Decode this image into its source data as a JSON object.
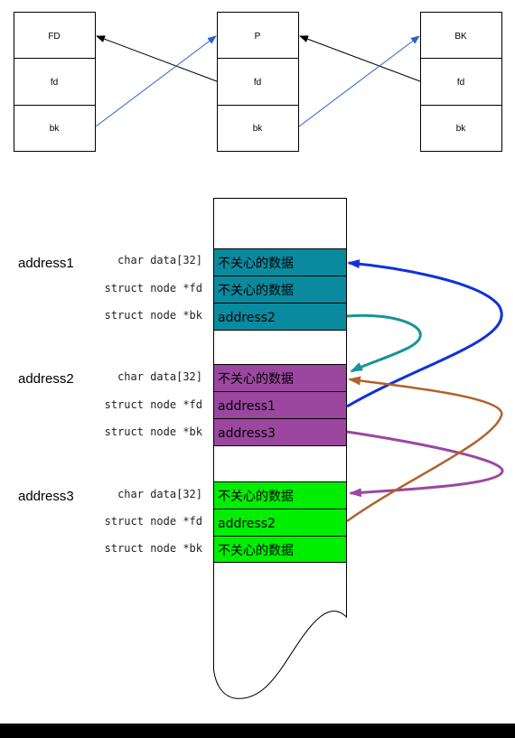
{
  "top": {
    "nodes": [
      {
        "name": "FD",
        "fields": [
          "FD",
          "fd",
          "bk"
        ]
      },
      {
        "name": "P",
        "fields": [
          "P",
          "fd",
          "bk"
        ]
      },
      {
        "name": "BK",
        "fields": [
          "BK",
          "fd",
          "bk"
        ]
      }
    ]
  },
  "bottom": {
    "addresses": [
      {
        "label": "address1",
        "fields": [
          {
            "decl": "char data[32]",
            "value": "不关心的数据"
          },
          {
            "decl": "struct node *fd",
            "value": "不关心的数据"
          },
          {
            "decl": "struct node *bk",
            "value": "address2"
          }
        ]
      },
      {
        "label": "address2",
        "fields": [
          {
            "decl": "char data[32]",
            "value": "不关心的数据"
          },
          {
            "decl": "struct node *fd",
            "value": "address1"
          },
          {
            "decl": "struct node *bk",
            "value": "address3"
          }
        ]
      },
      {
        "label": "address3",
        "fields": [
          {
            "decl": "char data[32]",
            "value": "不关心的数据"
          },
          {
            "decl": "struct node *fd",
            "value": "address2"
          },
          {
            "decl": "struct node *bk",
            "value": "不关心的数据"
          }
        ]
      }
    ]
  },
  "colors": {
    "address1_fill": "#0a8a9e",
    "address2_fill": "#9b47a0",
    "address3_fill": "#00ee00",
    "arrow_blue": "#1030e0",
    "arrow_teal": "#17939a",
    "arrow_purple": "#9b47a0",
    "arrow_brown": "#b0622a",
    "top_arrow_blue": "#2a62c8"
  }
}
